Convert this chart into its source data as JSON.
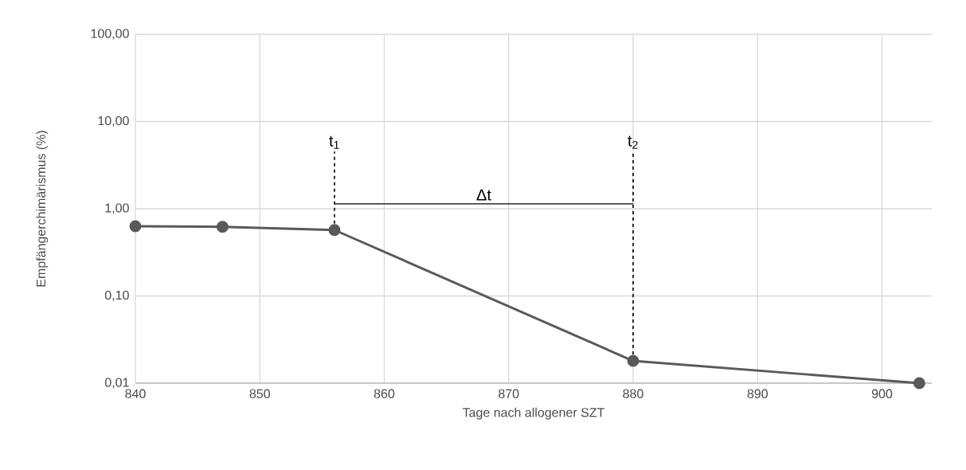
{
  "chart_data": {
    "type": "line",
    "xlabel": "Tage nach allogener SZT",
    "ylabel": "Empfängerchimärismus (%)",
    "x": [
      840,
      847,
      856,
      880,
      903
    ],
    "series": [
      {
        "color": "#595959",
        "values": [
          0.63,
          0.62,
          0.57,
          0.018,
          0.01
        ]
      }
    ],
    "xlim": [
      840,
      904
    ],
    "xticks": [
      840,
      850,
      860,
      870,
      880,
      890,
      900
    ],
    "ylim": [
      0.01,
      100
    ],
    "log": "y",
    "yticks": [
      {
        "value": 0.01,
        "label": "0,01"
      },
      {
        "value": 0.1,
        "label": "0,10"
      },
      {
        "value": 1,
        "label": "1,00"
      },
      {
        "value": 10,
        "label": "10,00"
      },
      {
        "value": 100,
        "label": "100,00"
      }
    ],
    "grid": true,
    "marker": "circle",
    "line_style": "solid",
    "annotations": [
      {
        "text": "t$_{1}$",
        "x": 856,
        "y": 0.57
      },
      {
        "text": "t$_{2}$",
        "x": 880,
        "y": 0.018
      },
      "Δt"
    ]
  }
}
